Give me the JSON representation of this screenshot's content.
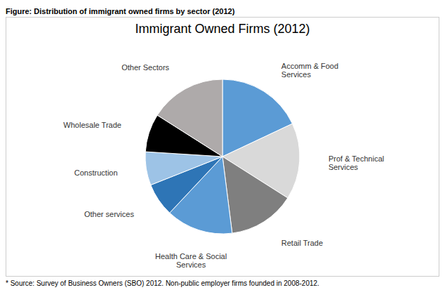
{
  "chart_data": {
    "type": "pie",
    "title": "Immigrant Owned Firms (2012)",
    "annotations": [
      "Figure: Distribution of immigrant owned firms by sector (2012)",
      "* Source: Survey of Business Owners (SBO) 2012. Non-public employer firms founded in 2008-2012."
    ],
    "categories": [
      "Accomm & Food\nServices",
      "Prof & Technical\nServices",
      "Retail Trade",
      "Health Care & Social\nServices",
      "Other services",
      "Construction",
      "Wholesale Trade",
      "Other Sectors"
    ],
    "values": [
      18,
      16,
      14,
      14,
      7,
      7,
      8,
      16
    ],
    "colors": [
      "#5b9bd5",
      "#d9d9d9",
      "#7f7f7f",
      "#5b9bd5",
      "#2e75b6",
      "#9dc3e6",
      "#000000",
      "#aeaaaa"
    ]
  }
}
